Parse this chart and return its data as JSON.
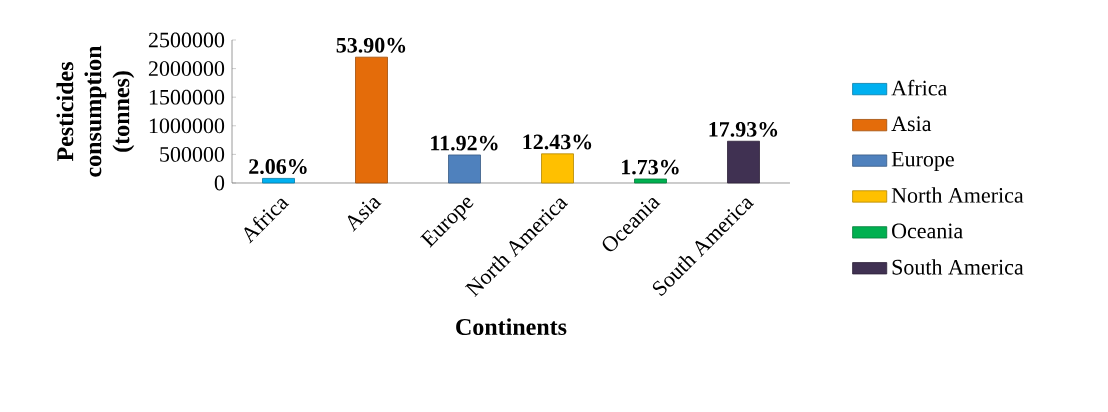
{
  "chart_data": {
    "type": "bar",
    "xlabel": "Continents",
    "ylabel": "Pesticides consumption (tonnes)",
    "categories": [
      "Africa",
      "Asia",
      "Europe",
      "North America",
      "Oceania",
      "South America"
    ],
    "series": [
      {
        "name": "Africa",
        "color": "#00b0f0",
        "values": [
          80000,
          null,
          null,
          null,
          null,
          null
        ]
      },
      {
        "name": "Asia",
        "color": "#e46c0a",
        "values": [
          null,
          2200000,
          null,
          null,
          null,
          null
        ]
      },
      {
        "name": "Europe",
        "color": "#4f81bd",
        "values": [
          null,
          null,
          490000,
          null,
          null,
          null
        ]
      },
      {
        "name": "North America",
        "color": "#ffc000",
        "values": [
          null,
          null,
          null,
          510000,
          null,
          null
        ]
      },
      {
        "name": "Oceania",
        "color": "#00b050",
        "values": [
          null,
          null,
          null,
          null,
          70000,
          null
        ]
      },
      {
        "name": "South America",
        "color": "#403152",
        "values": [
          null,
          null,
          null,
          null,
          null,
          730000
        ]
      }
    ],
    "annotations": [
      {
        "text": "2.06%",
        "x": "Africa",
        "y": 80000
      },
      {
        "text": "53.90%",
        "x": "Asia",
        "y": 2200000
      },
      {
        "text": "11.92%",
        "x": "Europe",
        "y": 490000
      },
      {
        "text": "12.43%",
        "x": "North America",
        "y": 510000
      },
      {
        "text": "1.73%",
        "x": "Oceania",
        "y": 70000
      },
      {
        "text": "17.93%",
        "x": "South America",
        "y": 730000
      }
    ],
    "ylim": [
      0,
      2500000
    ],
    "yticks": [
      0,
      500000,
      1000000,
      1500000,
      2000000,
      2500000
    ],
    "legend": "right"
  }
}
